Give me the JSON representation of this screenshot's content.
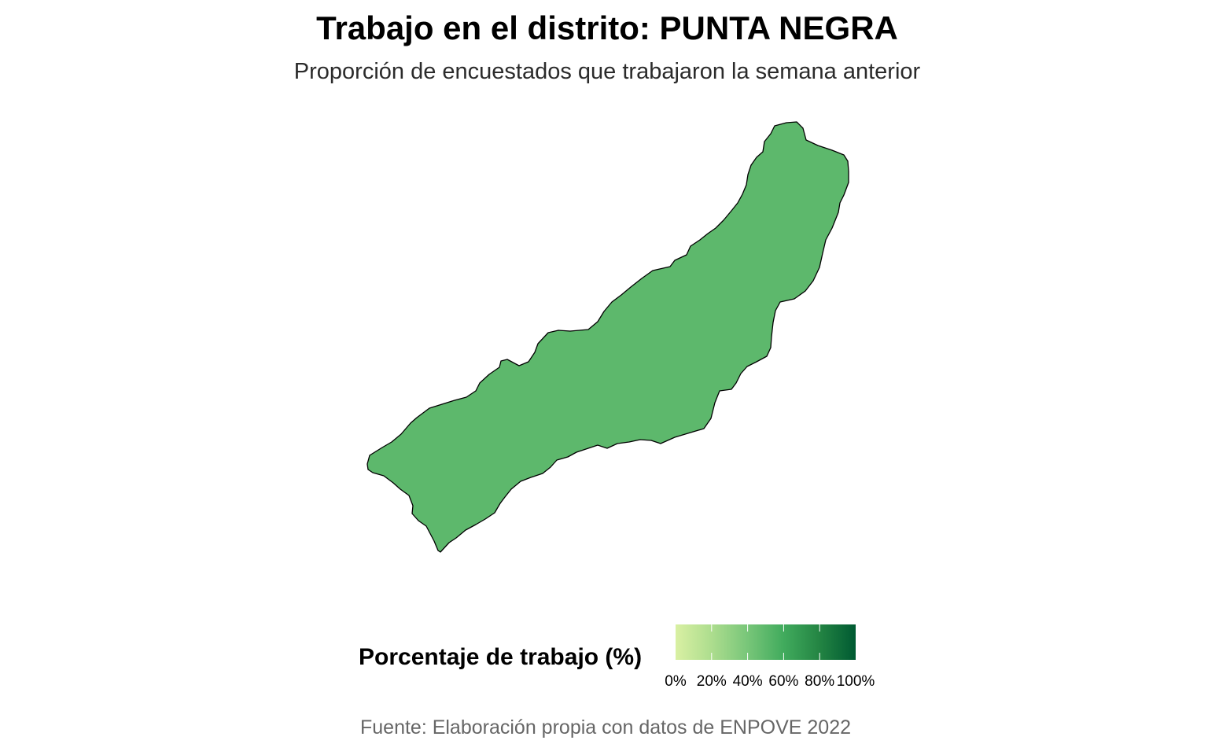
{
  "title": "Trabajo en el distrito: PUNTA NEGRA",
  "subtitle": "Proporción de encuestados que trabajaron la semana anterior",
  "map": {
    "district": "PUNTA NEGRA",
    "fill_color": "#5db86c",
    "outline_color": "#000000"
  },
  "legend": {
    "title": "Porcentaje de trabajo (%)",
    "min": 0,
    "max": 100,
    "ticks": [
      "0%",
      "20%",
      "40%",
      "60%",
      "80%",
      "100%"
    ],
    "colors": [
      "#d9f0a3",
      "#addd8e",
      "#78c679",
      "#41ab5d",
      "#238443",
      "#005a32"
    ]
  },
  "caption": "Fuente: Elaboración propia con datos de ENPOVE 2022"
}
